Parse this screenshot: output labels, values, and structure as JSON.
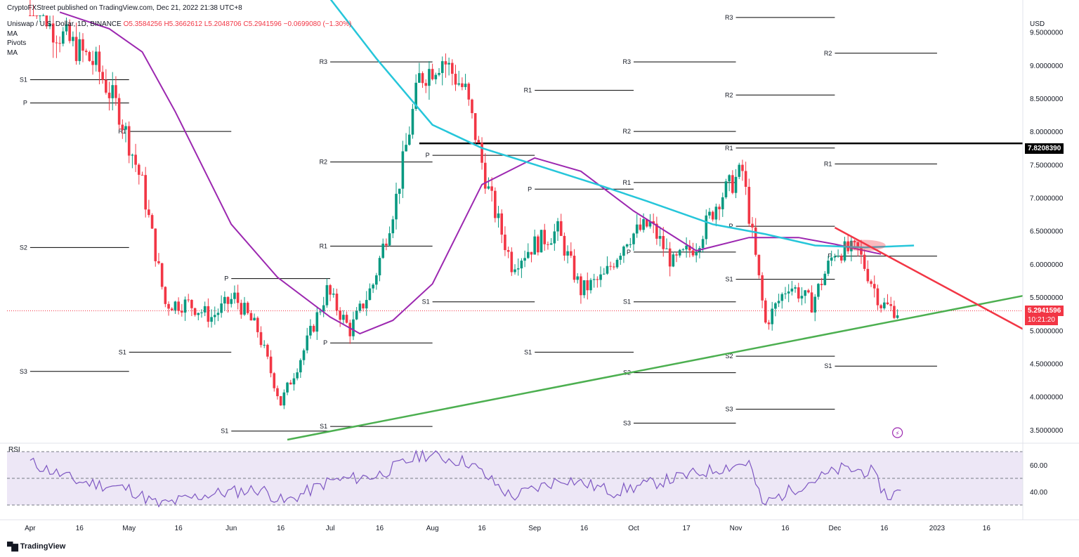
{
  "header": {
    "publisher_line": "CryptoFXStreet published on TradingView.com, Dec 21, 2022 21:38 UTC+8"
  },
  "legend": {
    "symbol": "Uniswap / U.S. Dollar, 1D, BINANCE",
    "ohlc": {
      "open": "O5.3584256",
      "high": "H5.3662612",
      "low": "L5.2048706",
      "close": "C5.2941596",
      "change": "−0.0699080 (−1.30%)"
    },
    "indicators": [
      "MA",
      "Pivots",
      "MA"
    ]
  },
  "price_axis": {
    "currency": "USD",
    "ticks": [
      "9.5000000",
      "9.0000000",
      "8.5000000",
      "8.0000000",
      "7.5000000",
      "7.0000000",
      "6.5000000",
      "6.0000000",
      "5.5000000",
      "5.0000000",
      "4.5000000",
      "4.0000000",
      "3.5000000"
    ],
    "highlight_level": "7.8208390",
    "last_price": "5.2941596",
    "countdown": "10:21:20"
  },
  "rsi": {
    "label": "RSI",
    "ticks": [
      "60.00",
      "40.00"
    ]
  },
  "time_axis": {
    "ticks": [
      "Apr",
      "16",
      "May",
      "16",
      "Jun",
      "16",
      "Jul",
      "16",
      "Aug",
      "16",
      "Sep",
      "16",
      "Oct",
      "17",
      "Nov",
      "16",
      "Dec",
      "16",
      "2023",
      "16"
    ]
  },
  "pivot_labels": [
    "S1",
    "P",
    "S2",
    "S3",
    "R1",
    "P",
    "S1",
    "S1",
    "R3",
    "R2",
    "R1",
    "P",
    "S1",
    "S1",
    "P",
    "R1",
    "S1",
    "P",
    "R3",
    "R2",
    "R1",
    "P",
    "S1",
    "S2",
    "S3",
    "R3",
    "R2",
    "R1",
    "P",
    "S1",
    "S2",
    "S3",
    "R2",
    "R1",
    "P",
    "S1"
  ],
  "footer": {
    "brand": "TradingView"
  },
  "colors": {
    "bull": "#089981",
    "bear": "#f23645",
    "ma_fast": "#9c27b0",
    "ma_slow": "#26c6da",
    "support_trend": "#4caf50",
    "resistance_trend": "#f23645",
    "level_line": "#000000",
    "rsi_line": "#7e57c2",
    "rsi_band": "#ede7f6"
  },
  "chart_data": {
    "type": "candlestick",
    "symbol": "UNI/USD",
    "timeframe": "1D",
    "y_range": [
      3.35,
      9.75
    ],
    "x_date_range": [
      "2022-03-25",
      "2023-01-27"
    ],
    "key_level": 7.820839,
    "last_price": 5.2941596,
    "support_trendline": {
      "from": [
        "2022-06-18",
        3.35
      ],
      "to": [
        "2023-01-27",
        5.52
      ]
    },
    "resistance_trendline": {
      "from": [
        "2022-12-01",
        6.55
      ],
      "to": [
        "2023-01-27",
        5.02
      ]
    },
    "closes_weekly": [
      [
        "2022-04-01",
        10.4
      ],
      [
        "2022-04-08",
        9.6
      ],
      [
        "2022-04-15",
        9.3
      ],
      [
        "2022-04-22",
        9.0
      ],
      [
        "2022-04-29",
        8.3
      ],
      [
        "2022-05-06",
        7.2
      ],
      [
        "2022-05-13",
        5.4
      ],
      [
        "2022-05-20",
        5.4
      ],
      [
        "2022-05-27",
        5.2
      ],
      [
        "2022-06-03",
        5.5
      ],
      [
        "2022-06-10",
        5.0
      ],
      [
        "2022-06-17",
        3.9
      ],
      [
        "2022-06-24",
        4.7
      ],
      [
        "2022-07-01",
        5.6
      ],
      [
        "2022-07-08",
        5.0
      ],
      [
        "2022-07-15",
        5.7
      ],
      [
        "2022-07-22",
        7.0
      ],
      [
        "2022-07-29",
        8.8
      ],
      [
        "2022-08-05",
        9.1
      ],
      [
        "2022-08-12",
        8.6
      ],
      [
        "2022-08-19",
        7.1
      ],
      [
        "2022-08-26",
        6.0
      ],
      [
        "2022-09-02",
        6.3
      ],
      [
        "2022-09-09",
        6.5
      ],
      [
        "2022-09-16",
        5.6
      ],
      [
        "2022-09-23",
        5.8
      ],
      [
        "2022-09-30",
        6.4
      ],
      [
        "2022-10-07",
        6.6
      ],
      [
        "2022-10-14",
        6.0
      ],
      [
        "2022-10-21",
        6.3
      ],
      [
        "2022-10-28",
        7.0
      ],
      [
        "2022-11-04",
        7.4
      ],
      [
        "2022-11-11",
        5.1
      ],
      [
        "2022-11-18",
        5.7
      ],
      [
        "2022-11-25",
        5.4
      ],
      [
        "2022-12-02",
        6.2
      ],
      [
        "2022-12-09",
        6.2
      ],
      [
        "2022-12-16",
        5.4
      ],
      [
        "2022-12-21",
        5.29
      ]
    ],
    "ma_fast": [
      [
        "2022-04-10",
        9.8
      ],
      [
        "2022-04-25",
        9.55
      ],
      [
        "2022-05-05",
        9.2
      ],
      [
        "2022-05-15",
        8.3
      ],
      [
        "2022-06-01",
        6.6
      ],
      [
        "2022-06-15",
        5.8
      ],
      [
        "2022-07-01",
        5.2
      ],
      [
        "2022-07-10",
        4.95
      ],
      [
        "2022-07-20",
        5.15
      ],
      [
        "2022-08-01",
        5.7
      ],
      [
        "2022-08-16",
        7.2
      ],
      [
        "2022-09-01",
        7.6
      ],
      [
        "2022-09-15",
        7.4
      ],
      [
        "2022-10-01",
        6.8
      ],
      [
        "2022-10-20",
        6.2
      ],
      [
        "2022-11-05",
        6.4
      ],
      [
        "2022-11-20",
        6.4
      ],
      [
        "2022-12-01",
        6.3
      ],
      [
        "2022-12-15",
        6.15
      ]
    ],
    "ma_slow": [
      [
        "2022-07-01",
        10.0
      ],
      [
        "2022-07-15",
        9.1
      ],
      [
        "2022-08-01",
        8.1
      ],
      [
        "2022-08-16",
        7.75
      ],
      [
        "2022-09-01",
        7.5
      ],
      [
        "2022-09-20",
        7.2
      ],
      [
        "2022-10-05",
        6.95
      ],
      [
        "2022-10-25",
        6.6
      ],
      [
        "2022-11-10",
        6.45
      ],
      [
        "2022-11-25",
        6.28
      ],
      [
        "2022-12-10",
        6.25
      ],
      [
        "2022-12-25",
        6.28
      ]
    ],
    "rsi": {
      "range": [
        30,
        70
      ],
      "levels": [
        70,
        50,
        30
      ],
      "weekly": [
        [
          "2022-04-01",
          62
        ],
        [
          "2022-04-15",
          48
        ],
        [
          "2022-05-01",
          42
        ],
        [
          "2022-05-10",
          30
        ],
        [
          "2022-05-25",
          38
        ],
        [
          "2022-06-10",
          42
        ],
        [
          "2022-06-17",
          32
        ],
        [
          "2022-07-01",
          48
        ],
        [
          "2022-07-15",
          52
        ],
        [
          "2022-07-29",
          68
        ],
        [
          "2022-08-12",
          62
        ],
        [
          "2022-08-25",
          36
        ],
        [
          "2022-09-10",
          50
        ],
        [
          "2022-09-25",
          40
        ],
        [
          "2022-10-10",
          48
        ],
        [
          "2022-10-28",
          58
        ],
        [
          "2022-11-05",
          62
        ],
        [
          "2022-11-09",
          30
        ],
        [
          "2022-11-20",
          44
        ],
        [
          "2022-12-03",
          57
        ],
        [
          "2022-12-12",
          55
        ],
        [
          "2022-12-17",
          36
        ],
        [
          "2022-12-21",
          41
        ]
      ]
    }
  }
}
